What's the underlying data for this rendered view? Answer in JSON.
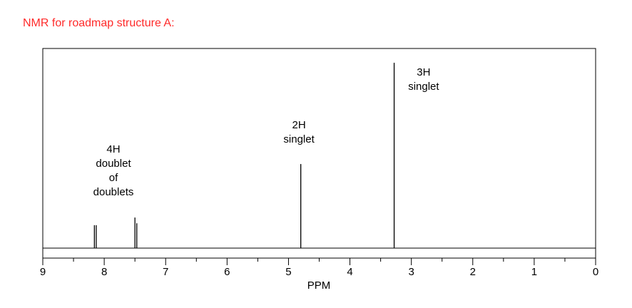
{
  "heading": "NMR for roadmap structure A:",
  "colors": {
    "heading": "#ff2a2a",
    "spectrum": "#000000"
  },
  "chart_data": {
    "type": "line",
    "xlabel": "PPM",
    "xlim": [
      9,
      0
    ],
    "x_reversed": true,
    "x_ticks": [
      "9",
      "8",
      "7",
      "6",
      "5",
      "4",
      "3",
      "2",
      "1",
      "0"
    ],
    "ylim": [
      0,
      1
    ],
    "grid": false,
    "peaks": [
      {
        "ppm": 8.16,
        "height": 0.12
      },
      {
        "ppm": 8.13,
        "height": 0.12
      },
      {
        "ppm": 7.5,
        "height": 0.16
      },
      {
        "ppm": 7.47,
        "height": 0.13
      },
      {
        "ppm": 4.8,
        "height": 0.44
      },
      {
        "ppm": 3.28,
        "height": 0.97
      }
    ],
    "annotations": [
      {
        "lines": [
          "4H",
          "doublet",
          "of",
          "doublets"
        ],
        "ppm": 7.85
      },
      {
        "lines": [
          "2H",
          "singlet"
        ],
        "ppm": 4.83
      },
      {
        "lines": [
          "3H",
          "singlet"
        ],
        "ppm": 2.8
      }
    ]
  }
}
